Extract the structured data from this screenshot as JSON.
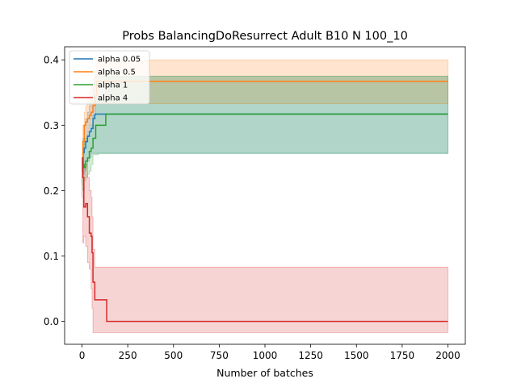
{
  "chart_data": {
    "type": "line",
    "title": "Probs BalancingDoResurrect Adult B10 N 100_10",
    "xlabel": "Number of batches",
    "ylabel": "",
    "xlim": [
      -95,
      2095
    ],
    "ylim": [
      -0.035,
      0.42
    ],
    "xticks": [
      0,
      250,
      500,
      750,
      1000,
      1250,
      1500,
      1750,
      2000
    ],
    "yticks": [
      0.0,
      0.1,
      0.2,
      0.3,
      0.4
    ],
    "ytick_labels": [
      "0.0",
      "0.1",
      "0.2",
      "0.3",
      "0.4"
    ],
    "grid": false,
    "legend_position": "top-left",
    "series": [
      {
        "name": "alpha 0.05",
        "color": "#1f77b4",
        "x": [
          0,
          5,
          12,
          20,
          30,
          40,
          50,
          60,
          70,
          130,
          2000
        ],
        "y": [
          0.25,
          0.258,
          0.265,
          0.275,
          0.283,
          0.29,
          0.295,
          0.31,
          0.317,
          0.317,
          0.317
        ],
        "lower": [
          0.25,
          0.23,
          0.225,
          0.23,
          0.24,
          0.245,
          0.25,
          0.257,
          0.257,
          0.257,
          0.257
        ],
        "upper": [
          0.25,
          0.28,
          0.3,
          0.31,
          0.32,
          0.33,
          0.34,
          0.36,
          0.375,
          0.375,
          0.375
        ]
      },
      {
        "name": "alpha 0.5",
        "color": "#ff7f0e",
        "x": [
          0,
          5,
          12,
          20,
          30,
          40,
          50,
          60,
          70,
          80,
          2000
        ],
        "y": [
          0.25,
          0.275,
          0.3,
          0.305,
          0.31,
          0.315,
          0.32,
          0.33,
          0.345,
          0.367,
          0.367
        ],
        "lower": [
          0.25,
          0.25,
          0.26,
          0.27,
          0.28,
          0.29,
          0.3,
          0.31,
          0.32,
          0.333,
          0.333
        ],
        "upper": [
          0.25,
          0.3,
          0.32,
          0.33,
          0.34,
          0.35,
          0.36,
          0.37,
          0.38,
          0.4,
          0.4
        ]
      },
      {
        "name": "alpha 1",
        "color": "#2ca02c",
        "x": [
          0,
          5,
          12,
          20,
          30,
          40,
          50,
          60,
          75,
          90,
          130,
          2000
        ],
        "y": [
          0.25,
          0.24,
          0.235,
          0.245,
          0.25,
          0.26,
          0.265,
          0.28,
          0.3,
          0.3,
          0.317,
          0.317
        ],
        "lower": [
          0.25,
          0.21,
          0.2,
          0.215,
          0.22,
          0.225,
          0.23,
          0.24,
          0.255,
          0.255,
          0.257,
          0.257
        ],
        "upper": [
          0.25,
          0.27,
          0.275,
          0.28,
          0.285,
          0.29,
          0.3,
          0.315,
          0.34,
          0.34,
          0.375,
          0.375
        ]
      },
      {
        "name": "alpha 4",
        "color": "#d62728",
        "x": [
          0,
          5,
          10,
          20,
          30,
          40,
          50,
          55,
          60,
          70,
          135,
          2000
        ],
        "y": [
          0.25,
          0.22,
          0.175,
          0.18,
          0.16,
          0.135,
          0.13,
          0.105,
          0.06,
          0.033,
          0.0,
          0.0
        ],
        "lower": [
          0.25,
          0.19,
          0.12,
          0.13,
          0.115,
          0.09,
          0.08,
          0.05,
          0.02,
          -0.017,
          -0.017,
          -0.017
        ],
        "upper": [
          0.25,
          0.26,
          0.235,
          0.24,
          0.22,
          0.2,
          0.19,
          0.16,
          0.11,
          0.083,
          0.083,
          0.083
        ]
      }
    ]
  }
}
